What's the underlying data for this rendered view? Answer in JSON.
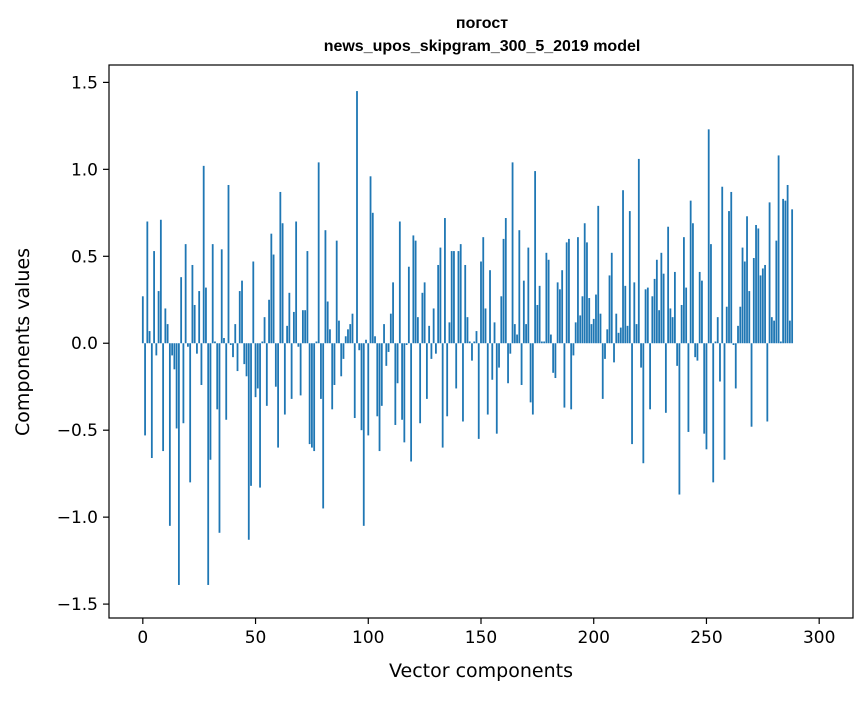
{
  "chart_data": {
    "type": "bar",
    "title_line1": "погост",
    "title_line2": "news_upos_skipgram_300_5_2019 model",
    "xlabel": "Vector components",
    "ylabel": "Components values",
    "xlim": [
      -15,
      315
    ],
    "ylim": [
      -1.58,
      1.6
    ],
    "x_ticks": [
      0,
      50,
      100,
      150,
      200,
      250,
      300
    ],
    "y_ticks": [
      1.5,
      1.0,
      0.5,
      0.0,
      -0.5,
      -1.0,
      -1.5
    ],
    "y_tick_labels": [
      "1.5",
      "1.0",
      "0.5",
      "0.0",
      "−0.5",
      "−1.0",
      "−1.5"
    ],
    "bar_color": "#1f77b4",
    "grid": false,
    "values": [
      0.27,
      -0.53,
      0.7,
      0.07,
      -0.66,
      0.53,
      -0.07,
      0.3,
      0.71,
      -0.62,
      0.2,
      0.11,
      -1.05,
      -0.07,
      -0.15,
      -0.49,
      -1.39,
      0.38,
      -0.46,
      0.57,
      -0.02,
      -0.8,
      0.45,
      0.22,
      -0.06,
      0.3,
      -0.24,
      1.02,
      0.32,
      -1.39,
      -0.67,
      0.57,
      0.01,
      -0.38,
      -1.09,
      0.54,
      0.03,
      -0.44,
      0.91,
      -0.01,
      -0.08,
      0.11,
      -0.16,
      0.3,
      0.36,
      -0.12,
      -0.19,
      -1.13,
      -0.82,
      0.47,
      -0.31,
      -0.26,
      -0.83,
      0.01,
      0.15,
      -0.36,
      0.25,
      0.63,
      0.51,
      -0.25,
      -0.6,
      0.87,
      0.69,
      -0.41,
      0.1,
      0.29,
      -0.32,
      0.18,
      0.7,
      -0.02,
      -0.3,
      0.19,
      0.19,
      0.53,
      -0.58,
      -0.6,
      -0.62,
      0.01,
      1.04,
      -0.32,
      -0.95,
      0.65,
      0.24,
      0.08,
      -0.38,
      -0.24,
      0.59,
      0.13,
      -0.19,
      -0.09,
      0.04,
      0.08,
      0.11,
      0.17,
      -0.43,
      1.45,
      -0.04,
      -0.5,
      -1.05,
      0.02,
      -0.53,
      0.96,
      0.75,
      0.04,
      -0.42,
      -0.62,
      -0.36,
      0.11,
      -0.13,
      -0.05,
      0.17,
      0.35,
      -0.47,
      -0.23,
      0.7,
      -0.44,
      -0.57,
      -0.01,
      0.44,
      -0.68,
      0.62,
      0.59,
      0.15,
      -0.46,
      0.29,
      0.35,
      -0.32,
      0.1,
      -0.09,
      0.2,
      -0.06,
      0.45,
      0.55,
      -0.6,
      0.72,
      -0.42,
      0.12,
      0.53,
      0.53,
      -0.26,
      0.53,
      0.57,
      -0.45,
      0.45,
      0.15,
      0.01,
      -0.1,
      0.01,
      0.07,
      -0.55,
      0.47,
      0.61,
      0.2,
      -0.41,
      0.42,
      -0.21,
      0.12,
      -0.52,
      -0.14,
      0.27,
      0.6,
      0.72,
      -0.23,
      -0.06,
      1.04,
      0.11,
      0.05,
      0.65,
      -0.24,
      0.36,
      0.11,
      0.55,
      -0.34,
      -0.41,
      0.99,
      0.22,
      0.33,
      0.01,
      0.01,
      0.52,
      0.48,
      0.05,
      -0.17,
      -0.2,
      0.35,
      0.31,
      0.42,
      -0.37,
      0.58,
      0.6,
      -0.38,
      -0.07,
      0.12,
      0.61,
      0.16,
      0.27,
      0.69,
      0.58,
      0.26,
      0.11,
      0.14,
      0.28,
      0.79,
      0.17,
      -0.32,
      -0.09,
      0.08,
      0.39,
      0.52,
      -0.11,
      0.17,
      0.06,
      0.09,
      0.88,
      0.33,
      0.1,
      0.76,
      -0.58,
      0.35,
      0.11,
      1.06,
      -0.14,
      -0.69,
      0.31,
      0.32,
      -0.38,
      0.27,
      0.37,
      0.48,
      0.19,
      0.52,
      0.4,
      -0.4,
      0.67,
      0.2,
      0.15,
      0.41,
      -0.13,
      -0.87,
      0.22,
      0.61,
      0.32,
      -0.51,
      0.82,
      0.69,
      -0.08,
      -0.1,
      0.41,
      0.36,
      -0.52,
      -0.61,
      1.23,
      0.57,
      -0.8,
      0.01,
      0.15,
      -0.22,
      0.9,
      -0.67,
      0.21,
      0.76,
      0.87,
      -0.01,
      -0.26,
      0.1,
      0.21,
      0.55,
      0.47,
      0.73,
      0.3,
      -0.48,
      0.49,
      0.68,
      0.66,
      0.39,
      0.43,
      0.45,
      -0.45,
      0.81,
      0.15,
      0.13,
      0.59,
      1.08,
      0.01,
      0.83,
      0.82,
      0.91,
      0.13,
      0.77
    ]
  }
}
